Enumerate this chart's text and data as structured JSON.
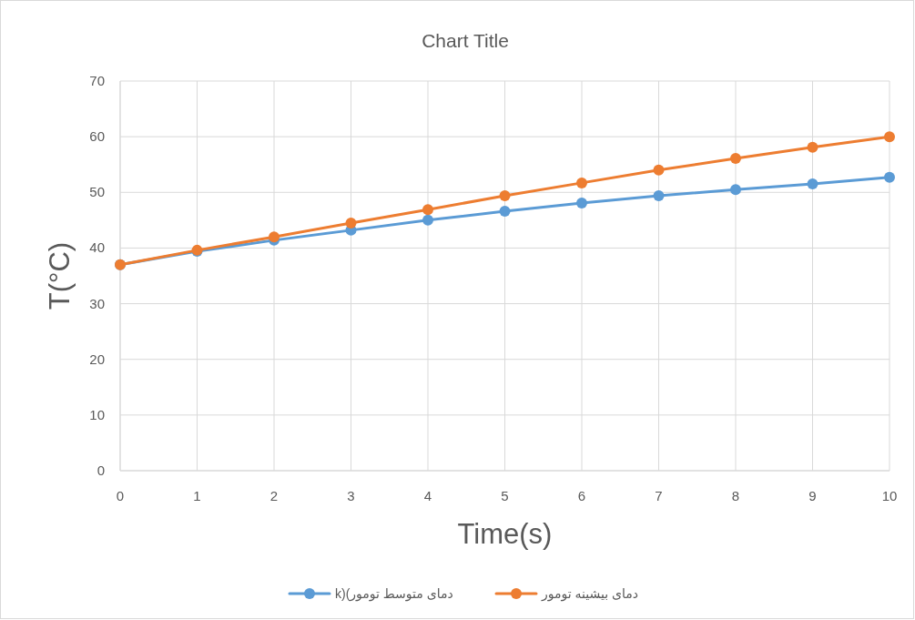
{
  "chart_data": {
    "type": "line",
    "title": "Chart Title",
    "xlabel": "Time(s)",
    "ylabel": "T(°C)",
    "x": [
      0,
      1,
      2,
      3,
      4,
      5,
      6,
      7,
      8,
      9,
      10
    ],
    "series": [
      {
        "name": "دمای متوسط تومور)(k",
        "color": "#5b9bd5",
        "values": [
          37.0,
          39.4,
          41.4,
          43.2,
          45.0,
          46.6,
          48.1,
          49.4,
          50.5,
          51.5,
          52.7
        ]
      },
      {
        "name": "دمای بیشینه تومور",
        "color": "#ed7d31",
        "values": [
          37.0,
          39.6,
          42.0,
          44.5,
          46.9,
          49.4,
          51.7,
          54.0,
          56.1,
          58.1,
          60.0
        ]
      }
    ],
    "xlim": [
      0,
      10
    ],
    "xticks": [
      0,
      1,
      2,
      3,
      4,
      5,
      6,
      7,
      8,
      9,
      10
    ],
    "ylim": [
      0,
      70
    ],
    "yticks": [
      0,
      10,
      20,
      30,
      40,
      50,
      60,
      70
    ],
    "grid": true,
    "legend": "bottom",
    "marker": "circle",
    "line_style": "solid"
  }
}
